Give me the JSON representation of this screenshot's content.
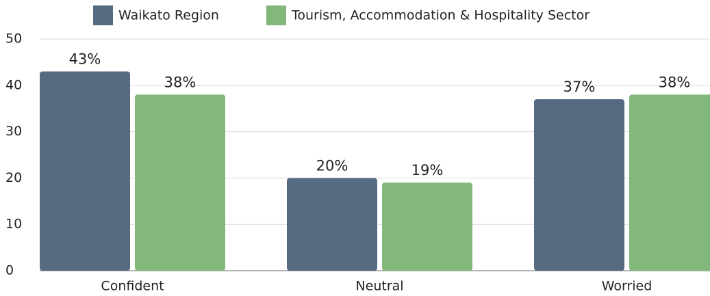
{
  "chart_data": {
    "type": "bar",
    "categories": [
      "Confident",
      "Neutral",
      "Worried"
    ],
    "series": [
      {
        "name": "Waikato Region",
        "color": "#566a82",
        "values": [
          43,
          20,
          37
        ],
        "value_labels": [
          "43%",
          "20%",
          "37%"
        ]
      },
      {
        "name": "Tourism, Accommodation & Hospitality Sector",
        "color": "#82b97a",
        "values": [
          38,
          19,
          38
        ],
        "value_labels": [
          "38%",
          "19%",
          "38%"
        ]
      }
    ],
    "ylim": [
      0,
      50
    ],
    "yticks": [
      0,
      10,
      20,
      30,
      40,
      50
    ],
    "grid": true,
    "legend": "top"
  }
}
